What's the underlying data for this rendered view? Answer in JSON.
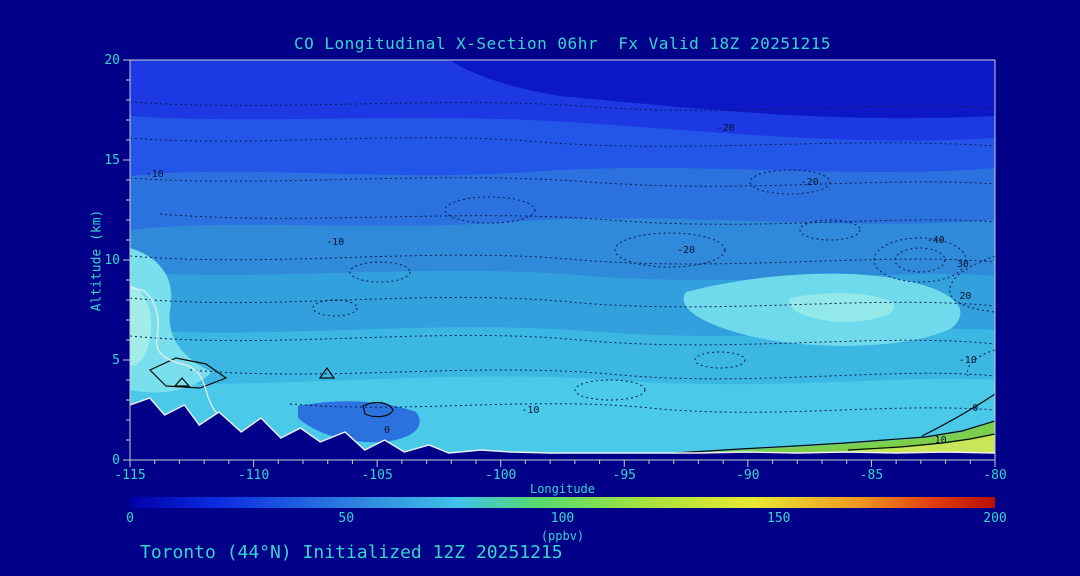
{
  "colors": {
    "background": "#000089",
    "text_accent": "#33D6CC",
    "frame": "#C9CED4",
    "contour_label": "#071235",
    "terrain": "#000089",
    "terrain_outline": "#EDEFEF"
  },
  "chart_data": {
    "type": "heatmap",
    "subtype": "filled-contour-vertical-cross-section",
    "title": "CO Longitudinal X-Section 06hr  Fx Valid 18Z 20251215",
    "footer": "Toronto (44°N) Initialized 12Z 20251215",
    "xlabel": "Longitude",
    "ylabel": "Altitude (km)",
    "xlim": [
      -115,
      -80
    ],
    "ylim": [
      0,
      20
    ],
    "x_ticks": [
      -115,
      -110,
      -105,
      -100,
      -95,
      -90,
      -85,
      -80
    ],
    "x_minor_step": 1,
    "y_ticks": [
      0,
      5,
      10,
      15,
      20
    ],
    "y_minor_step": 1,
    "grid": false,
    "legend_position": "colorbar-bottom",
    "colorbar": {
      "min": 0,
      "max": 200,
      "ticks": [
        0,
        50,
        100,
        150,
        200
      ],
      "units": "(ppbv)",
      "gradient": [
        {
          "pos": 0.0,
          "color": "#0000A8"
        },
        {
          "pos": 0.1,
          "color": "#0B2BE0"
        },
        {
          "pos": 0.25,
          "color": "#2B7CE0"
        },
        {
          "pos": 0.38,
          "color": "#3FC4E8"
        },
        {
          "pos": 0.47,
          "color": "#55D96E"
        },
        {
          "pos": 0.6,
          "color": "#A8E23C"
        },
        {
          "pos": 0.72,
          "color": "#E8E832"
        },
        {
          "pos": 0.84,
          "color": "#F09A22"
        },
        {
          "pos": 0.93,
          "color": "#E03C10"
        },
        {
          "pos": 1.0,
          "color": "#B80E06"
        }
      ]
    },
    "fill_bands_estimated_ppbv": [
      {
        "color": "#0C18C7",
        "ppbv": "30-40"
      },
      {
        "color": "#1C39E3",
        "ppbv": "40-50"
      },
      {
        "color": "#2455E9",
        "ppbv": "50-55"
      },
      {
        "color": "#2B72DF",
        "ppbv": "55-65"
      },
      {
        "color": "#2F8BD9",
        "ppbv": "65-75"
      },
      {
        "color": "#31A0DC",
        "ppbv": "75-85"
      },
      {
        "color": "#3CB7E3",
        "ppbv": "85-95"
      },
      {
        "color": "#4AC9E9",
        "ppbv": "95-105"
      },
      {
        "color": "#79DFEC",
        "ppbv": "105-115"
      },
      {
        "color": "#7BCF4D",
        "ppbv": "115-130"
      },
      {
        "color": "#C9E65A",
        "ppbv": "130-145"
      }
    ],
    "contour_labels": [
      {
        "text": "-10",
        "lon": -114.0,
        "alt": 14.3
      },
      {
        "text": "-20",
        "lon": -90.9,
        "alt": 16.6
      },
      {
        "text": "-20",
        "lon": -87.5,
        "alt": 13.9
      },
      {
        "text": "-40",
        "lon": -82.4,
        "alt": 11.0
      },
      {
        "text": "-10",
        "lon": -106.7,
        "alt": 10.9
      },
      {
        "text": "-20",
        "lon": -92.5,
        "alt": 10.5
      },
      {
        "text": "30",
        "lon": -81.3,
        "alt": 9.8
      },
      {
        "text": "20",
        "lon": -81.2,
        "alt": 8.2
      },
      {
        "text": "-10",
        "lon": -81.1,
        "alt": 5.0
      },
      {
        "text": "-10",
        "lon": -98.8,
        "alt": 2.5
      },
      {
        "text": "0",
        "lon": -80.8,
        "alt": 2.6
      },
      {
        "text": "10",
        "lon": -82.2,
        "alt": 1.0
      },
      {
        "text": "0",
        "lon": -104.6,
        "alt": 1.5
      }
    ],
    "terrain_profile_km": [
      [
        -115,
        2.75
      ],
      [
        -114.2,
        3.1
      ],
      [
        -113.6,
        2.25
      ],
      [
        -112.8,
        2.75
      ],
      [
        -112.2,
        1.75
      ],
      [
        -111.4,
        2.4
      ],
      [
        -110.5,
        1.4
      ],
      [
        -109.7,
        2.1
      ],
      [
        -108.9,
        1.1
      ],
      [
        -108.1,
        1.6
      ],
      [
        -107.3,
        0.9
      ],
      [
        -106.3,
        1.4
      ],
      [
        -105.5,
        0.5
      ],
      [
        -104.7,
        1.0
      ],
      [
        -103.9,
        0.4
      ],
      [
        -102.9,
        0.75
      ],
      [
        -102.1,
        0.35
      ],
      [
        -100.8,
        0.5
      ],
      [
        -99.6,
        0.4
      ],
      [
        -98,
        0.35
      ],
      [
        -95,
        0.35
      ],
      [
        -92,
        0.35
      ],
      [
        -90,
        0.4
      ],
      [
        -88,
        0.35
      ],
      [
        -86,
        0.4
      ],
      [
        -84,
        0.35
      ],
      [
        -82,
        0.4
      ],
      [
        -80,
        0.35
      ]
    ]
  }
}
